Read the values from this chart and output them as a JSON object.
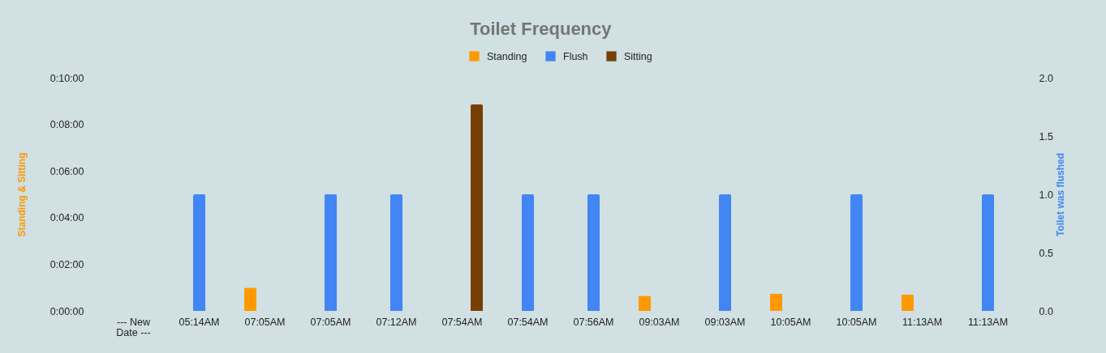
{
  "chart_data": {
    "type": "bar",
    "title": "Toilet Frequency",
    "ylabel": "Standing & Sitting",
    "y2label": "Toilet was flushed",
    "categories": [
      "--- New Date ---",
      "05:14AM",
      "07:05AM",
      "07:05AM",
      "07:12AM",
      "07:54AM",
      "07:54AM",
      "07:56AM",
      "09:03AM",
      "09:03AM",
      "10:05AM",
      "10:05AM",
      "11:13AM",
      "11:13AM"
    ],
    "series": [
      {
        "name": "Standing",
        "color": "#ff9900",
        "values": [
          null,
          null,
          1.0,
          null,
          null,
          null,
          null,
          null,
          0.65,
          null,
          0.75,
          null,
          0.7,
          null
        ]
      },
      {
        "name": "Flush",
        "color": "#4285f4",
        "axis": "y2",
        "values": [
          null,
          1,
          null,
          1,
          1,
          null,
          1,
          1,
          null,
          1,
          null,
          1,
          null,
          1
        ]
      },
      {
        "name": "Sitting",
        "color": "#783f04",
        "values": [
          null,
          null,
          null,
          null,
          null,
          8.85,
          null,
          null,
          null,
          null,
          null,
          null,
          null,
          null
        ]
      }
    ],
    "ylim": [
      0,
      10
    ],
    "yticks": [
      {
        "value": 0,
        "label": "0:00:00"
      },
      {
        "value": 2,
        "label": "0:02:00"
      },
      {
        "value": 4,
        "label": "0:04:00"
      },
      {
        "value": 6,
        "label": "0:06:00"
      },
      {
        "value": 8,
        "label": "0:08:00"
      },
      {
        "value": 10,
        "label": "0:10:00"
      }
    ],
    "y2lim": [
      0,
      2
    ],
    "y2ticks": [
      {
        "value": 0,
        "label": "0.0"
      },
      {
        "value": 0.5,
        "label": "0.5"
      },
      {
        "value": 1,
        "label": "1.0"
      },
      {
        "value": 1.5,
        "label": "1.5"
      },
      {
        "value": 2,
        "label": "2.0"
      }
    ],
    "legend": "top"
  }
}
